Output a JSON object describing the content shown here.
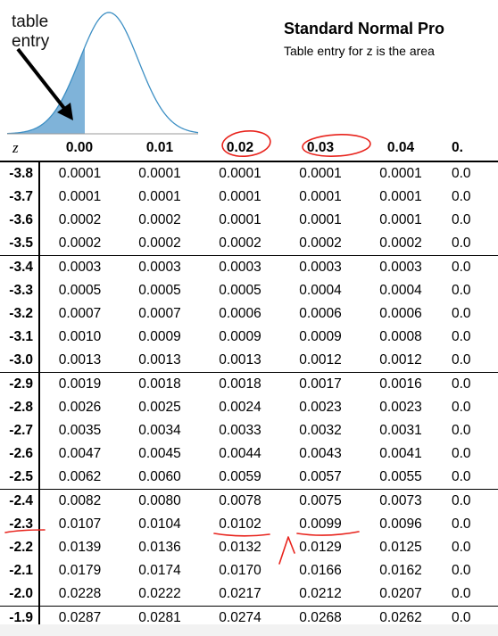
{
  "figure": {
    "label_line1": "table",
    "label_line2": "entry",
    "curve_color": "#3d8fc4",
    "shade_color": "#7fb3d9"
  },
  "header": {
    "title": "Standard Normal Pro",
    "subtitle": "Table entry for z is the area"
  },
  "table": {
    "z_header": "z",
    "columns": [
      "0.00",
      "0.01",
      "0.02",
      "0.03",
      "0.04",
      "0."
    ],
    "rows": [
      {
        "z": "-3.8",
        "cells": [
          "0.0001",
          "0.0001",
          "0.0001",
          "0.0001",
          "0.0001",
          "0.0"
        ]
      },
      {
        "z": "-3.7",
        "cells": [
          "0.0001",
          "0.0001",
          "0.0001",
          "0.0001",
          "0.0001",
          "0.0"
        ]
      },
      {
        "z": "-3.6",
        "cells": [
          "0.0002",
          "0.0002",
          "0.0001",
          "0.0001",
          "0.0001",
          "0.0"
        ]
      },
      {
        "z": "-3.5",
        "cells": [
          "0.0002",
          "0.0002",
          "0.0002",
          "0.0002",
          "0.0002",
          "0.0"
        ]
      },
      {
        "z": "-3.4",
        "cells": [
          "0.0003",
          "0.0003",
          "0.0003",
          "0.0003",
          "0.0003",
          "0.0"
        ]
      },
      {
        "z": "-3.3",
        "cells": [
          "0.0005",
          "0.0005",
          "0.0005",
          "0.0004",
          "0.0004",
          "0.0"
        ]
      },
      {
        "z": "-3.2",
        "cells": [
          "0.0007",
          "0.0007",
          "0.0006",
          "0.0006",
          "0.0006",
          "0.0"
        ]
      },
      {
        "z": "-3.1",
        "cells": [
          "0.0010",
          "0.0009",
          "0.0009",
          "0.0009",
          "0.0008",
          "0.0"
        ]
      },
      {
        "z": "-3.0",
        "cells": [
          "0.0013",
          "0.0013",
          "0.0013",
          "0.0012",
          "0.0012",
          "0.0"
        ]
      },
      {
        "z": "-2.9",
        "cells": [
          "0.0019",
          "0.0018",
          "0.0018",
          "0.0017",
          "0.0016",
          "0.0"
        ]
      },
      {
        "z": "-2.8",
        "cells": [
          "0.0026",
          "0.0025",
          "0.0024",
          "0.0023",
          "0.0023",
          "0.0"
        ]
      },
      {
        "z": "-2.7",
        "cells": [
          "0.0035",
          "0.0034",
          "0.0033",
          "0.0032",
          "0.0031",
          "0.0"
        ]
      },
      {
        "z": "-2.6",
        "cells": [
          "0.0047",
          "0.0045",
          "0.0044",
          "0.0043",
          "0.0041",
          "0.0"
        ]
      },
      {
        "z": "-2.5",
        "cells": [
          "0.0062",
          "0.0060",
          "0.0059",
          "0.0057",
          "0.0055",
          "0.0"
        ]
      },
      {
        "z": "-2.4",
        "cells": [
          "0.0082",
          "0.0080",
          "0.0078",
          "0.0075",
          "0.0073",
          "0.0"
        ]
      },
      {
        "z": "-2.3",
        "cells": [
          "0.0107",
          "0.0104",
          "0.0102",
          "0.0099",
          "0.0096",
          "0.0"
        ]
      },
      {
        "z": "-2.2",
        "cells": [
          "0.0139",
          "0.0136",
          "0.0132",
          "0.0129",
          "0.0125",
          "0.0"
        ]
      },
      {
        "z": "-2.1",
        "cells": [
          "0.0179",
          "0.0174",
          "0.0170",
          "0.0166",
          "0.0162",
          "0.0"
        ]
      },
      {
        "z": "-2.0",
        "cells": [
          "0.0228",
          "0.0222",
          "0.0217",
          "0.0212",
          "0.0207",
          "0.0"
        ]
      },
      {
        "z": "-1.9",
        "cells": [
          "0.0287",
          "0.0281",
          "0.0274",
          "0.0268",
          "0.0262",
          "0.0"
        ]
      }
    ],
    "group_starts": [
      4,
      9,
      14,
      19
    ]
  },
  "annotations": {
    "ink_color": "#e8231c"
  }
}
